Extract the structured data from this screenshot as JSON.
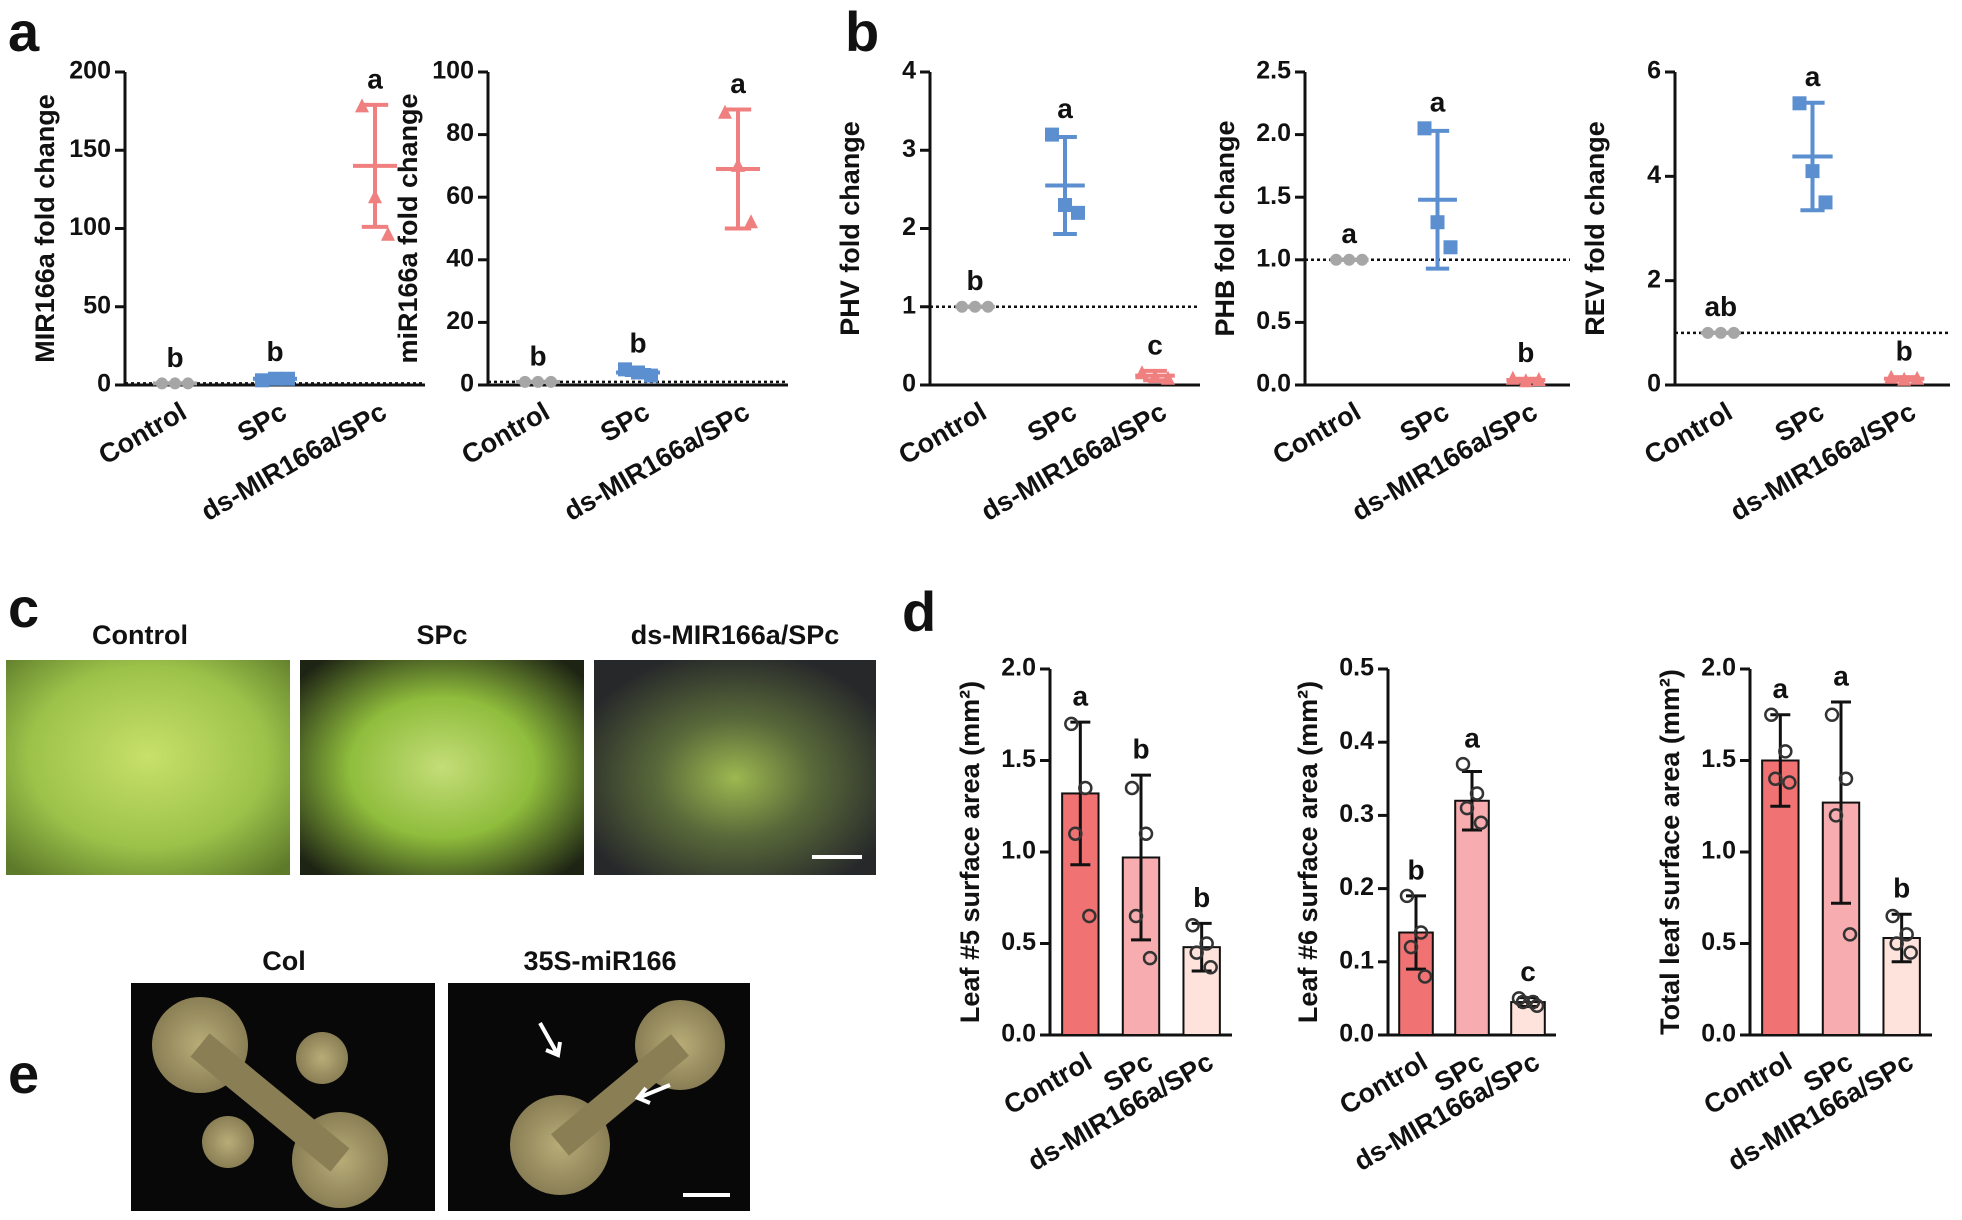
{
  "panels": [
    "a",
    "b",
    "c",
    "d",
    "e"
  ],
  "photos": {
    "c": [
      "Control",
      "SPc",
      "ds-MIR166a/SPc"
    ],
    "e": [
      "Col",
      "35S-miR166"
    ]
  },
  "chart_data": [
    {
      "type": "dot",
      "ylabel": "MIR166a fold change",
      "categories": [
        "Control",
        "SPc",
        "ds-MIR166a/SPc"
      ],
      "values": [
        1,
        4,
        140
      ],
      "errors": [
        0,
        0.6,
        39
      ],
      "points": [
        [
          1,
          1,
          1
        ],
        [
          3,
          4,
          4
        ],
        [
          178,
          120,
          96
        ]
      ],
      "letters": [
        "b",
        "b",
        "a"
      ],
      "colors": [
        "#a6a6a6",
        "#5b8fd0",
        "#f07f7f"
      ],
      "markers": [
        "circle",
        "square",
        "triangle"
      ],
      "reference_line": 1,
      "ylim": [
        0,
        200
      ],
      "yticks": [
        0,
        50,
        100,
        150,
        200
      ]
    },
    {
      "type": "dot",
      "ylabel": "miR166a fold change",
      "categories": [
        "Control",
        "SPc",
        "ds-MIR166a/SPc"
      ],
      "values": [
        1,
        4,
        69
      ],
      "errors": [
        0,
        0.8,
        19
      ],
      "points": [
        [
          1,
          1,
          1
        ],
        [
          5,
          4,
          3
        ],
        [
          87,
          70,
          52
        ]
      ],
      "letters": [
        "b",
        "b",
        "a"
      ],
      "colors": [
        "#a6a6a6",
        "#5b8fd0",
        "#f07f7f"
      ],
      "markers": [
        "circle",
        "square",
        "triangle"
      ],
      "reference_line": 1,
      "ylim": [
        0,
        100
      ],
      "yticks": [
        0,
        20,
        40,
        60,
        80,
        100
      ]
    },
    {
      "type": "dot",
      "ylabel": "PHV fold change",
      "categories": [
        "Control",
        "SPc",
        "ds-MIR166a/SPc"
      ],
      "values": [
        1,
        2.55,
        0.12
      ],
      "errors": [
        0,
        0.62,
        0.06
      ],
      "points": [
        [
          1,
          1,
          1
        ],
        [
          3.2,
          2.3,
          2.2
        ],
        [
          0.15,
          0.1,
          0.08
        ]
      ],
      "letters": [
        "b",
        "a",
        "c"
      ],
      "colors": [
        "#a6a6a6",
        "#5b8fd0",
        "#f07f7f"
      ],
      "markers": [
        "circle",
        "square",
        "triangle"
      ],
      "reference_line": 1,
      "ylim": [
        0,
        4
      ],
      "yticks": [
        0,
        1,
        2,
        3,
        4
      ]
    },
    {
      "type": "dot",
      "ylabel": "PHB fold change",
      "categories": [
        "Control",
        "SPc",
        "ds-MIR166a/SPc"
      ],
      "values": [
        1,
        1.48,
        0.04
      ],
      "errors": [
        0,
        0.55,
        0.01
      ],
      "points": [
        [
          1,
          1,
          1
        ],
        [
          2.05,
          1.3,
          1.1
        ],
        [
          0.05,
          0.03,
          0.04
        ]
      ],
      "letters": [
        "a",
        "a",
        "b"
      ],
      "colors": [
        "#a6a6a6",
        "#5b8fd0",
        "#f07f7f"
      ],
      "markers": [
        "circle",
        "square",
        "triangle"
      ],
      "reference_line": 1,
      "ylim": [
        0,
        2.5
      ],
      "yticks": [
        {
          "value": 0,
          "label": "0.0"
        },
        0.5,
        {
          "value": 1,
          "label": "1.0"
        },
        1.5,
        {
          "value": 2,
          "label": "2.0"
        },
        2.5
      ]
    },
    {
      "type": "dot",
      "ylabel": "REV fold change",
      "categories": [
        "Control",
        "SPc",
        "ds-MIR166a/SPc"
      ],
      "values": [
        1,
        4.38,
        0.12
      ],
      "errors": [
        0,
        1.03,
        0.03
      ],
      "points": [
        [
          1,
          1,
          1
        ],
        [
          5.4,
          4.1,
          3.5
        ],
        [
          0.14,
          0.1,
          0.12
        ]
      ],
      "letters": [
        "ab",
        "a",
        "b"
      ],
      "colors": [
        "#a6a6a6",
        "#5b8fd0",
        "#f07f7f"
      ],
      "markers": [
        "circle",
        "square",
        "triangle"
      ],
      "reference_line": 1,
      "ylim": [
        0,
        6
      ],
      "yticks": [
        0,
        2,
        4,
        6
      ]
    },
    {
      "type": "bar",
      "ylabel": "Leaf #5 surface area (mm²)",
      "categories": [
        "Control",
        "SPc",
        "ds-MIR166a/SPc"
      ],
      "values": [
        1.32,
        0.97,
        0.48
      ],
      "errors": [
        0.39,
        0.45,
        0.13
      ],
      "points": [
        [
          1.7,
          1.35,
          1.1,
          0.65
        ],
        [
          1.35,
          1.1,
          0.65,
          0.42
        ],
        [
          0.6,
          0.5,
          0.45,
          0.37
        ]
      ],
      "letters": [
        "a",
        "b",
        "b"
      ],
      "colors": [
        "#f07272",
        "#f7adb0",
        "#fde3dc"
      ],
      "ylim": [
        0,
        2
      ],
      "yticks": [
        {
          "value": 0,
          "label": "0.0"
        },
        0.5,
        {
          "value": 1,
          "label": "1.0"
        },
        1.5,
        {
          "value": 2,
          "label": "2.0"
        }
      ]
    },
    {
      "type": "bar",
      "ylabel": "Leaf #6 surface area (mm²)",
      "categories": [
        "Control",
        "SPc",
        "ds-MIR166a/SPc"
      ],
      "values": [
        0.14,
        0.32,
        0.045
      ],
      "errors": [
        0.05,
        0.04,
        0.006
      ],
      "points": [
        [
          0.19,
          0.14,
          0.12,
          0.08
        ],
        [
          0.37,
          0.33,
          0.31,
          0.29
        ],
        [
          0.05,
          0.045,
          0.045,
          0.04
        ]
      ],
      "letters": [
        "b",
        "a",
        "c"
      ],
      "colors": [
        "#f07272",
        "#f7adb0",
        "#fde3dc"
      ],
      "ylim": [
        0,
        0.5
      ],
      "yticks": [
        {
          "value": 0,
          "label": "0.0"
        },
        0.1,
        0.2,
        0.3,
        0.4,
        0.5
      ]
    },
    {
      "type": "bar",
      "ylabel": "Total leaf surface area (mm²)",
      "categories": [
        "Control",
        "SPc",
        "ds-MIR166a/SPc"
      ],
      "values": [
        1.5,
        1.27,
        0.53
      ],
      "errors": [
        0.25,
        0.55,
        0.13
      ],
      "points": [
        [
          1.75,
          1.55,
          1.4,
          1.38
        ],
        [
          1.75,
          1.4,
          1.2,
          0.55
        ],
        [
          0.65,
          0.55,
          0.5,
          0.45
        ]
      ],
      "letters": [
        "a",
        "a",
        "b"
      ],
      "colors": [
        "#f07272",
        "#f7adb0",
        "#fde3dc"
      ],
      "ylim": [
        0,
        2
      ],
      "yticks": [
        {
          "value": 0,
          "label": "0.0"
        },
        0.5,
        {
          "value": 1,
          "label": "1.0"
        },
        1.5,
        {
          "value": 2,
          "label": "2.0"
        }
      ]
    }
  ]
}
